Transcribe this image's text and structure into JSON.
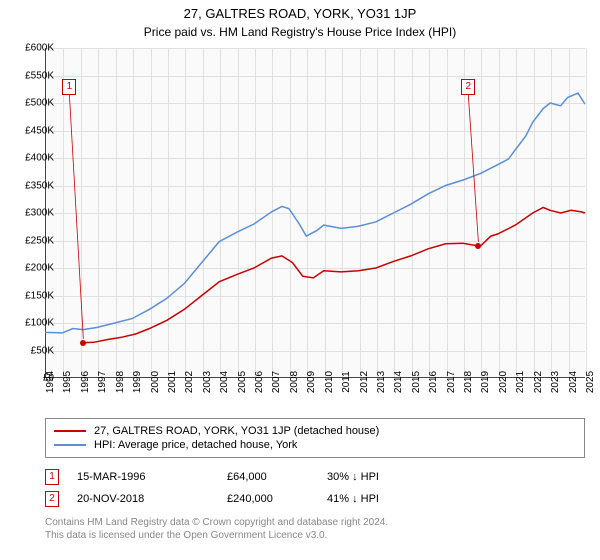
{
  "title": "27, GALTRES ROAD, YORK, YO31 1JP",
  "subtitle": "Price paid vs. HM Land Registry's House Price Index (HPI)",
  "chart": {
    "type": "line",
    "background_color": "#fafafa",
    "grid_color": "#e0e0e0",
    "axis_color": "#444444",
    "x": {
      "min": 1994,
      "max": 2025,
      "ticks": [
        1994,
        1995,
        1996,
        1997,
        1998,
        1999,
        2000,
        2001,
        2002,
        2003,
        2004,
        2005,
        2006,
        2007,
        2008,
        2009,
        2010,
        2011,
        2012,
        2013,
        2014,
        2015,
        2016,
        2017,
        2018,
        2019,
        2020,
        2021,
        2022,
        2023,
        2024,
        2025
      ],
      "fontsize": 10
    },
    "y": {
      "min": 0,
      "max": 600,
      "ticks": [
        0,
        50,
        100,
        150,
        200,
        250,
        300,
        350,
        400,
        450,
        500,
        550,
        600
      ],
      "tick_labels": [
        "£0",
        "£50K",
        "£100K",
        "£150K",
        "£200K",
        "£250K",
        "£300K",
        "£350K",
        "£400K",
        "£450K",
        "£500K",
        "£550K",
        "£600K"
      ],
      "fontsize": 10
    },
    "series": [
      {
        "name": "27, GALTRES ROAD, YORK, YO31 1JP (detached house)",
        "color": "#cc0000",
        "width": 1.5,
        "points": [
          [
            1996.2,
            64
          ],
          [
            1996.8,
            65
          ],
          [
            1997.6,
            70
          ],
          [
            1998.4,
            74
          ],
          [
            1999.2,
            80
          ],
          [
            2000.0,
            90
          ],
          [
            2001.0,
            105
          ],
          [
            2002.0,
            125
          ],
          [
            2003.0,
            150
          ],
          [
            2004.0,
            175
          ],
          [
            2005.0,
            188
          ],
          [
            2006.0,
            200
          ],
          [
            2007.0,
            218
          ],
          [
            2007.6,
            222
          ],
          [
            2008.2,
            210
          ],
          [
            2008.8,
            185
          ],
          [
            2009.4,
            182
          ],
          [
            2010.0,
            195
          ],
          [
            2011.0,
            193
          ],
          [
            2012.0,
            195
          ],
          [
            2013.0,
            200
          ],
          [
            2014.0,
            212
          ],
          [
            2015.0,
            222
          ],
          [
            2016.0,
            235
          ],
          [
            2017.0,
            244
          ],
          [
            2018.0,
            245
          ],
          [
            2018.88,
            240
          ],
          [
            2019.0,
            240
          ],
          [
            2019.6,
            258
          ],
          [
            2020.0,
            262
          ],
          [
            2021.0,
            278
          ],
          [
            2022.0,
            300
          ],
          [
            2022.6,
            310
          ],
          [
            2023.0,
            305
          ],
          [
            2023.6,
            300
          ],
          [
            2024.2,
            305
          ],
          [
            2024.8,
            302
          ],
          [
            2025.0,
            300
          ]
        ]
      },
      {
        "name": "HPI: Average price, detached house, York",
        "color": "#5b8fd6",
        "width": 1.5,
        "points": [
          [
            1994.0,
            83
          ],
          [
            1995.0,
            82
          ],
          [
            1995.6,
            90
          ],
          [
            1996.2,
            88
          ],
          [
            1997.0,
            92
          ],
          [
            1998.0,
            100
          ],
          [
            1999.0,
            108
          ],
          [
            2000.0,
            125
          ],
          [
            2001.0,
            145
          ],
          [
            2002.0,
            172
          ],
          [
            2003.0,
            210
          ],
          [
            2004.0,
            248
          ],
          [
            2005.0,
            265
          ],
          [
            2006.0,
            280
          ],
          [
            2007.0,
            302
          ],
          [
            2007.6,
            312
          ],
          [
            2008.0,
            308
          ],
          [
            2008.6,
            280
          ],
          [
            2009.0,
            258
          ],
          [
            2009.6,
            268
          ],
          [
            2010.0,
            278
          ],
          [
            2011.0,
            272
          ],
          [
            2012.0,
            276
          ],
          [
            2013.0,
            284
          ],
          [
            2014.0,
            300
          ],
          [
            2015.0,
            316
          ],
          [
            2016.0,
            335
          ],
          [
            2017.0,
            350
          ],
          [
            2018.0,
            360
          ],
          [
            2019.0,
            372
          ],
          [
            2020.0,
            388
          ],
          [
            2020.6,
            398
          ],
          [
            2021.0,
            415
          ],
          [
            2021.6,
            440
          ],
          [
            2022.0,
            465
          ],
          [
            2022.6,
            490
          ],
          [
            2023.0,
            500
          ],
          [
            2023.6,
            495
          ],
          [
            2024.0,
            510
          ],
          [
            2024.6,
            518
          ],
          [
            2025.0,
            498
          ]
        ]
      }
    ],
    "markers": [
      {
        "id": "1",
        "x_label": 1995.4,
        "y_label": 530,
        "x_dot": 1996.2,
        "y_dot": 64,
        "color": "#cc0000"
      },
      {
        "id": "2",
        "x_label": 2018.3,
        "y_label": 530,
        "x_dot": 2018.88,
        "y_dot": 240,
        "color": "#cc0000"
      }
    ]
  },
  "legend": {
    "items": [
      {
        "label": "27, GALTRES ROAD, YORK, YO31 1JP (detached house)",
        "color": "#cc0000"
      },
      {
        "label": "HPI: Average price, detached house, York",
        "color": "#5b8fd6"
      }
    ]
  },
  "transactions": [
    {
      "id": "1",
      "color": "#cc0000",
      "date": "15-MAR-1996",
      "price": "£64,000",
      "pct": "30%",
      "arrow": "↓",
      "suffix": "HPI"
    },
    {
      "id": "2",
      "color": "#cc0000",
      "date": "20-NOV-2018",
      "price": "£240,000",
      "pct": "41%",
      "arrow": "↓",
      "suffix": "HPI"
    }
  ],
  "footer_line1": "Contains HM Land Registry data © Crown copyright and database right 2024.",
  "footer_line2": "This data is licensed under the Open Government Licence v3.0."
}
